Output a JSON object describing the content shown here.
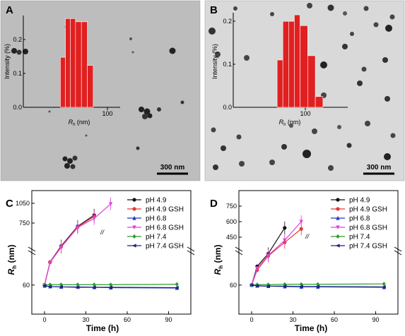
{
  "colors": {
    "bar": "#e02020",
    "tem_a_bg": "#bdbdbd",
    "tem_b_bg": "#d9d9d9",
    "series": [
      "#111111",
      "#e53935",
      "#2535c8",
      "#e040e0",
      "#2e9b2e",
      "#1a237e"
    ]
  },
  "panels": {
    "A": {
      "label": "A",
      "scale_bar": "300 nm"
    },
    "B": {
      "label": "B",
      "scale_bar": "300 nm"
    },
    "C": {
      "label": "C"
    },
    "D": {
      "label": "D"
    }
  },
  "chart_data": [
    {
      "panel": "A",
      "type": "bar",
      "ylabel": "Intensity (%)",
      "xlabel": "R_h (nm)",
      "yticks": [
        "0.0",
        "0.1",
        "0.2"
      ],
      "xticks": [
        "100"
      ],
      "categories": [
        44,
        50,
        56,
        62,
        69,
        76
      ],
      "values": [
        0.155,
        0.275,
        0.275,
        0.265,
        0.265,
        0.13
      ],
      "ylim": [
        0,
        0.28
      ]
    },
    {
      "panel": "B",
      "type": "bar",
      "ylabel": "Intensity (%)",
      "xlabel": "R_h (nm)",
      "yticks": [
        "0.0",
        "0.1",
        "0.2"
      ],
      "xticks": [
        "100"
      ],
      "categories": [
        46,
        52,
        58,
        64,
        70,
        78,
        86
      ],
      "values": [
        0.11,
        0.2,
        0.2,
        0.215,
        0.19,
        0.12,
        0.025
      ],
      "ylim": [
        0,
        0.22
      ]
    },
    {
      "panel": "C",
      "type": "line",
      "xlabel": "Time (h)",
      "ylabel": "R_h (nm)",
      "xticks": [
        "0",
        "30",
        "60",
        "90"
      ],
      "yticks_lower": [
        "60"
      ],
      "yticks_upper": [
        "750",
        "1050"
      ],
      "break_mark": "//",
      "series": [
        {
          "name": "pH 4.9",
          "x": [
            0,
            4,
            12,
            24,
            36
          ],
          "y": [
            60,
            130,
            400,
            700,
            870
          ]
        },
        {
          "name": "pH 4.9 GSH",
          "x": [
            0,
            4,
            12,
            24,
            36
          ],
          "y": [
            60,
            125,
            390,
            690,
            850
          ]
        },
        {
          "name": "pH 6.8",
          "x": [
            0,
            4,
            12,
            24,
            36,
            48,
            96
          ],
          "y": [
            58,
            56,
            55,
            55,
            54,
            53,
            52
          ]
        },
        {
          "name": "pH 6.8 GSH",
          "x": [
            0,
            4,
            12,
            24,
            36,
            48
          ],
          "y": [
            60,
            120,
            380,
            680,
            820,
            1040
          ]
        },
        {
          "name": "pH 7.4",
          "x": [
            0,
            4,
            12,
            24,
            36,
            48,
            96
          ],
          "y": [
            60,
            61,
            61,
            61,
            61,
            61,
            62
          ]
        },
        {
          "name": "pH 7.4 GSH",
          "x": [
            0,
            4,
            12,
            24,
            36,
            48,
            96
          ],
          "y": [
            58,
            56,
            55,
            54,
            54,
            54,
            53
          ]
        }
      ]
    },
    {
      "panel": "D",
      "type": "line",
      "xlabel": "Time (h)",
      "ylabel": "R_h (nm)",
      "xticks": [
        "0",
        "30",
        "60",
        "90"
      ],
      "yticks_lower": [
        "60"
      ],
      "yticks_upper": [
        "450",
        "600",
        "750"
      ],
      "break_mark": "//",
      "series": [
        {
          "name": "pH 4.9",
          "x": [
            0,
            4,
            12,
            24
          ],
          "y": [
            60,
            110,
            280,
            540
          ]
        },
        {
          "name": "pH 4.9 GSH",
          "x": [
            0,
            4,
            12,
            24,
            36
          ],
          "y": [
            60,
            100,
            240,
            400,
            530
          ]
        },
        {
          "name": "pH 6.8",
          "x": [
            0,
            4,
            12,
            24,
            36,
            48,
            96
          ],
          "y": [
            60,
            58,
            57,
            56,
            55,
            55,
            54
          ]
        },
        {
          "name": "pH 6.8 GSH",
          "x": [
            0,
            4,
            12,
            24,
            36
          ],
          "y": [
            60,
            105,
            250,
            420,
            600
          ]
        },
        {
          "name": "pH 7.4",
          "x": [
            0,
            4,
            12,
            24,
            36,
            48,
            96
          ],
          "y": [
            60,
            61,
            61,
            62,
            62,
            62,
            63
          ]
        },
        {
          "name": "pH 7.4 GSH",
          "x": [
            0,
            4,
            12,
            24,
            36,
            48,
            96
          ],
          "y": [
            60,
            58,
            57,
            57,
            56,
            56,
            55
          ]
        }
      ]
    }
  ]
}
